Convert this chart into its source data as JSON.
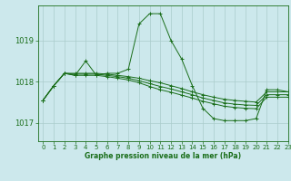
{
  "title": "Graphe pression niveau de la mer (hPa)",
  "bg_color": "#cce8ec",
  "grid_color": "#aacccc",
  "line_color": "#1a6e1a",
  "xlim": [
    -0.5,
    23
  ],
  "ylim": [
    1016.55,
    1019.85
  ],
  "yticks": [
    1017,
    1018,
    1019
  ],
  "xticks": [
    0,
    1,
    2,
    3,
    4,
    5,
    6,
    7,
    8,
    9,
    10,
    11,
    12,
    13,
    14,
    15,
    16,
    17,
    18,
    19,
    20,
    21,
    22,
    23
  ],
  "series": [
    {
      "x": [
        0,
        1,
        2,
        3,
        4,
        5,
        6,
        7,
        8,
        9,
        10,
        11,
        12,
        13,
        14,
        15,
        16,
        17,
        18,
        19,
        20,
        21,
        22,
        23
      ],
      "y": [
        1017.55,
        1017.9,
        1018.2,
        1018.15,
        1018.5,
        1018.15,
        1018.2,
        1018.2,
        1018.3,
        1019.4,
        1019.65,
        1019.65,
        1019.0,
        1018.55,
        1017.9,
        1017.35,
        1017.1,
        1017.05,
        1017.05,
        1017.05,
        1017.1,
        1017.8,
        1017.8,
        1017.75
      ]
    },
    {
      "x": [
        0,
        1,
        2,
        3,
        4,
        5,
        6,
        7,
        8,
        9,
        10,
        11,
        12,
        13,
        14,
        15,
        16,
        17,
        18,
        19,
        20,
        21,
        22,
        23
      ],
      "y": [
        1017.55,
        1017.9,
        1018.2,
        1018.2,
        1018.2,
        1018.2,
        1018.18,
        1018.15,
        1018.12,
        1018.08,
        1018.02,
        1017.97,
        1017.9,
        1017.83,
        1017.75,
        1017.68,
        1017.62,
        1017.57,
        1017.54,
        1017.52,
        1017.5,
        1017.75,
        1017.75,
        1017.75
      ]
    },
    {
      "x": [
        0,
        1,
        2,
        3,
        4,
        5,
        6,
        7,
        8,
        9,
        10,
        11,
        12,
        13,
        14,
        15,
        16,
        17,
        18,
        19,
        20,
        21,
        22,
        23
      ],
      "y": [
        1017.55,
        1017.9,
        1018.2,
        1018.18,
        1018.18,
        1018.18,
        1018.15,
        1018.12,
        1018.08,
        1018.02,
        1017.95,
        1017.88,
        1017.82,
        1017.75,
        1017.68,
        1017.6,
        1017.54,
        1017.48,
        1017.45,
        1017.43,
        1017.42,
        1017.68,
        1017.68,
        1017.68
      ]
    },
    {
      "x": [
        0,
        1,
        2,
        3,
        4,
        5,
        6,
        7,
        8,
        9,
        10,
        11,
        12,
        13,
        14,
        15,
        16,
        17,
        18,
        19,
        20,
        21,
        22,
        23
      ],
      "y": [
        1017.55,
        1017.9,
        1018.2,
        1018.15,
        1018.15,
        1018.15,
        1018.12,
        1018.08,
        1018.04,
        1017.97,
        1017.88,
        1017.8,
        1017.74,
        1017.67,
        1017.6,
        1017.52,
        1017.46,
        1017.4,
        1017.37,
        1017.35,
        1017.34,
        1017.62,
        1017.62,
        1017.62
      ]
    }
  ],
  "ylabel_fontsize": 6,
  "xlabel_fontsize": 5.5,
  "tick_fontsize": 5
}
